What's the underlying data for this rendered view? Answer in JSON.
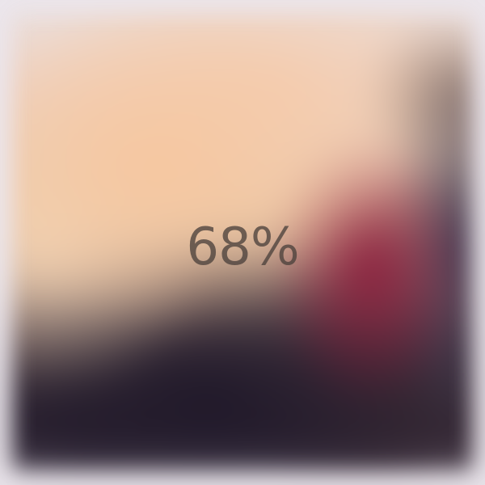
{
  "loading": {
    "progress_percent": 68,
    "progress_label": "68%"
  }
}
